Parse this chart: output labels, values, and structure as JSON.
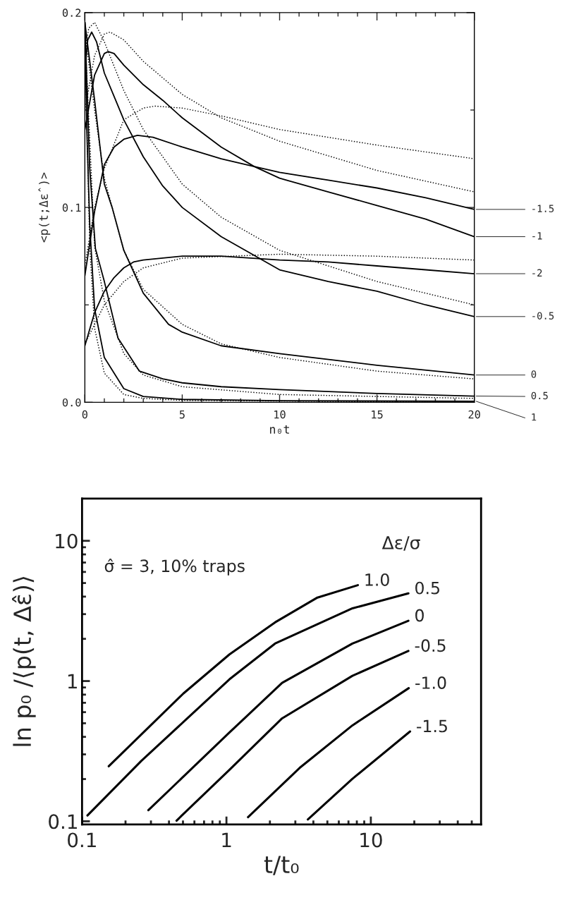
{
  "chart_data": [
    {
      "type": "line",
      "legend": "right",
      "xlabel": "n₀t",
      "ylabel": "<p(t;Δε̂)>",
      "xlim": [
        0,
        20
      ],
      "ylim": [
        0,
        0.2
      ],
      "xticks": [
        0,
        {
          "value": 1,
          "label": null
        },
        {
          "value": 2,
          "label": null
        },
        {
          "value": 3,
          "label": null
        },
        {
          "value": 4,
          "label": null
        },
        5,
        {
          "value": 6,
          "label": null
        },
        {
          "value": 7,
          "label": null
        },
        {
          "value": 8,
          "label": null
        },
        {
          "value": 9,
          "label": null
        },
        10,
        {
          "value": 11,
          "label": null
        },
        {
          "value": 12,
          "label": null
        },
        {
          "value": 13,
          "label": null
        },
        {
          "value": 14,
          "label": null
        },
        15,
        {
          "value": 16,
          "label": null
        },
        {
          "value": 17,
          "label": null
        },
        {
          "value": 18,
          "label": null
        },
        {
          "value": 19,
          "label": null
        },
        20
      ],
      "yticks": [
        {
          "value": 0,
          "label": "0.0"
        },
        {
          "value": 0.05,
          "label": null
        },
        0.1,
        {
          "value": 0.15,
          "label": null
        },
        0.2
      ],
      "series": [
        {
          "name": "-1.5",
          "color": "#000000",
          "line_style": "solid",
          "x": [
            0,
            0.5,
            1,
            1.5,
            2,
            2.7,
            3.5,
            5,
            7,
            8.7,
            10,
            12.5,
            15,
            17.5,
            20
          ],
          "values": [
            0.065,
            0.098,
            0.122,
            0.131,
            0.135,
            0.137,
            0.136,
            0.131,
            0.125,
            0.121,
            0.118,
            0.114,
            0.11,
            0.105,
            0.099
          ]
        },
        {
          "name": "-1",
          "color": "#000000",
          "line_style": "solid",
          "x": [
            0,
            0.5,
            1,
            1.2,
            1.5,
            2,
            3,
            4,
            5,
            7,
            8.7,
            10,
            12.5,
            15,
            17.5,
            20
          ],
          "values": [
            0.14,
            0.168,
            0.179,
            0.18,
            0.179,
            0.173,
            0.163,
            0.155,
            0.146,
            0.131,
            0.121,
            0.115,
            0.108,
            0.101,
            0.094,
            0.085
          ]
        },
        {
          "name": "-2",
          "color": "#000000",
          "line_style": "solid",
          "x": [
            0,
            0.5,
            1,
            1.5,
            2,
            2.5,
            3,
            4,
            5,
            7,
            10,
            12.5,
            15,
            17.5,
            20
          ],
          "values": [
            0.029,
            0.046,
            0.057,
            0.064,
            0.069,
            0.072,
            0.073,
            0.074,
            0.075,
            0.075,
            0.073,
            0.072,
            0.07,
            0.068,
            0.066
          ]
        },
        {
          "name": "-0.5",
          "color": "#000000",
          "line_style": "solid",
          "x": [
            0,
            0.15,
            0.35,
            0.6,
            1,
            1.5,
            2,
            3,
            4,
            5,
            7,
            10,
            12.5,
            15,
            17.5,
            20
          ],
          "values": [
            0.17,
            0.186,
            0.19,
            0.185,
            0.169,
            0.157,
            0.145,
            0.126,
            0.111,
            0.1,
            0.085,
            0.068,
            0.062,
            0.057,
            0.05,
            0.044
          ]
        },
        {
          "name": "0",
          "color": "#000000",
          "line_style": "solid",
          "x": [
            0,
            0.25,
            0.5,
            1,
            1.4,
            2,
            3,
            4.3,
            5,
            7,
            10,
            15,
            20
          ],
          "values": [
            0.195,
            0.175,
            0.155,
            0.112,
            0.1,
            0.078,
            0.056,
            0.04,
            0.036,
            0.029,
            0.025,
            0.019,
            0.014
          ]
        },
        {
          "name": "0.5",
          "color": "#000000",
          "line_style": "solid",
          "x": [
            0,
            0.25,
            0.54,
            1,
            1.7,
            2.8,
            4,
            5,
            7,
            10,
            15,
            20
          ],
          "values": [
            0.195,
            0.12,
            0.079,
            0.062,
            0.033,
            0.016,
            0.012,
            0.01,
            0.008,
            0.0065,
            0.0045,
            0.0032
          ]
        },
        {
          "name": "1",
          "color": "#000000",
          "line_style": "solid",
          "x": [
            0,
            0.1,
            0.25,
            0.5,
            1,
            2,
            3,
            5,
            10,
            20
          ],
          "values": [
            0.195,
            0.14,
            0.091,
            0.048,
            0.023,
            0.007,
            0.003,
            0.0015,
            0.0008,
            0.0005
          ]
        },
        {
          "color": "#000000",
          "line_style": "dotted",
          "x": [
            0,
            0.5,
            1,
            2,
            3,
            3.6,
            5,
            7,
            10,
            15,
            20
          ],
          "values": [
            0.07,
            0.1,
            0.12,
            0.145,
            0.151,
            0.152,
            0.151,
            0.147,
            0.14,
            0.132,
            0.125
          ]
        },
        {
          "color": "#000000",
          "line_style": "dotted",
          "x": [
            0,
            0.5,
            1,
            1.3,
            2,
            3,
            5,
            7,
            10,
            15,
            20
          ],
          "values": [
            0.15,
            0.178,
            0.189,
            0.19,
            0.186,
            0.175,
            0.158,
            0.146,
            0.134,
            0.119,
            0.108
          ]
        },
        {
          "color": "#000000",
          "line_style": "dotted",
          "x": [
            0,
            1,
            2,
            3,
            5,
            10,
            15,
            20
          ],
          "values": [
            0.03,
            0.05,
            0.062,
            0.069,
            0.074,
            0.076,
            0.075,
            0.073
          ]
        },
        {
          "color": "#000000",
          "line_style": "dotted",
          "x": [
            0,
            0.2,
            0.5,
            1,
            2,
            3,
            5,
            7,
            10,
            15,
            20
          ],
          "values": [
            0.18,
            0.192,
            0.195,
            0.185,
            0.16,
            0.14,
            0.112,
            0.095,
            0.078,
            0.062,
            0.05
          ]
        },
        {
          "color": "#000000",
          "line_style": "dotted",
          "x": [
            0,
            0.5,
            1,
            2,
            3,
            5,
            7,
            10,
            15,
            20
          ],
          "values": [
            0.19,
            0.15,
            0.115,
            0.078,
            0.058,
            0.04,
            0.03,
            0.023,
            0.016,
            0.012
          ]
        },
        {
          "color": "#000000",
          "line_style": "dotted",
          "x": [
            0,
            0.5,
            1,
            2,
            3,
            5,
            10,
            20
          ],
          "values": [
            0.19,
            0.08,
            0.052,
            0.025,
            0.014,
            0.008,
            0.004,
            0.002
          ]
        },
        {
          "color": "#000000",
          "line_style": "dotted",
          "x": [
            0,
            0.25,
            0.5,
            1,
            2,
            3,
            5,
            20
          ],
          "values": [
            0.19,
            0.08,
            0.038,
            0.015,
            0.004,
            0.002,
            0.001,
            0
          ]
        }
      ]
    },
    {
      "type": "line",
      "log": "xy",
      "xlabel": "t/t₀",
      "ylabel": "ln p₀ /⟨p(t, Δε̂)⟩",
      "legend_title": "Δε/σ",
      "annotations": [
        "σ̂ = 3, 10% traps"
      ],
      "xlim": [
        0.1,
        58
      ],
      "ylim": [
        0.095,
        20
      ],
      "xticks": [
        0.1,
        {
          "value": 0.2,
          "label": null
        },
        {
          "value": 0.3,
          "label": null
        },
        {
          "value": 0.4,
          "label": null
        },
        {
          "value": 0.5,
          "label": null
        },
        {
          "value": 0.6,
          "label": null
        },
        {
          "value": 0.7,
          "label": null
        },
        {
          "value": 0.8,
          "label": null
        },
        {
          "value": 0.9,
          "label": null
        },
        1,
        {
          "value": 2,
          "label": null
        },
        {
          "value": 3,
          "label": null
        },
        {
          "value": 4,
          "label": null
        },
        {
          "value": 5,
          "label": null
        },
        {
          "value": 6,
          "label": null
        },
        {
          "value": 7,
          "label": null
        },
        {
          "value": 8,
          "label": null
        },
        {
          "value": 9,
          "label": null
        },
        10,
        {
          "value": 20,
          "label": null
        },
        {
          "value": 30,
          "label": null
        },
        {
          "value": 40,
          "label": null
        },
        {
          "value": 50,
          "label": null
        }
      ],
      "yticks": [
        0.1,
        {
          "value": 0.2,
          "label": null
        },
        {
          "value": 0.3,
          "label": null
        },
        {
          "value": 0.4,
          "label": null
        },
        {
          "value": 0.5,
          "label": null
        },
        {
          "value": 0.6,
          "label": null
        },
        {
          "value": 0.7,
          "label": null
        },
        {
          "value": 0.8,
          "label": null
        },
        {
          "value": 0.9,
          "label": null
        },
        1,
        {
          "value": 2,
          "label": null
        },
        {
          "value": 3,
          "label": null
        },
        {
          "value": 4,
          "label": null
        },
        {
          "value": 5,
          "label": null
        },
        {
          "value": 6,
          "label": null
        },
        {
          "value": 7,
          "label": null
        },
        {
          "value": 8,
          "label": null
        },
        {
          "value": 9,
          "label": null
        },
        10
      ],
      "series": [
        {
          "name": "1.0",
          "color": "#000000",
          "x": [
            0.153,
            0.503,
            1.05,
            2.17,
            4.27,
            8.13
          ],
          "values": [
            0.247,
            0.815,
            1.55,
            2.62,
            3.94,
            4.83
          ]
        },
        {
          "name": "0.5",
          "color": "#000000",
          "x": [
            0.109,
            0.257,
            1.05,
            2.17,
            7.46,
            18.2
          ],
          "values": [
            0.11,
            0.269,
            1.03,
            1.85,
            3.3,
            4.22
          ]
        },
        {
          "name": "0",
          "color": "#000000",
          "x": [
            0.288,
            1.05,
            2.43,
            7.46,
            18.2
          ],
          "values": [
            0.12,
            0.43,
            0.97,
            1.85,
            2.69
          ]
        },
        {
          "name": "-0.5",
          "color": "#000000",
          "x": [
            0.451,
            1.05,
            2.43,
            7.46,
            18.2
          ],
          "values": [
            0.101,
            0.233,
            0.542,
            1.09,
            1.64
          ]
        },
        {
          "name": "-1.0",
          "color": "#000000",
          "x": [
            1.41,
            3.21,
            7.46,
            18.3
          ],
          "values": [
            0.107,
            0.24,
            0.483,
            0.89
          ]
        },
        {
          "name": "-1.5",
          "color": "#000000",
          "x": [
            3.66,
            7.46,
            18.7
          ],
          "values": [
            0.103,
            0.201,
            0.437
          ]
        }
      ]
    }
  ]
}
